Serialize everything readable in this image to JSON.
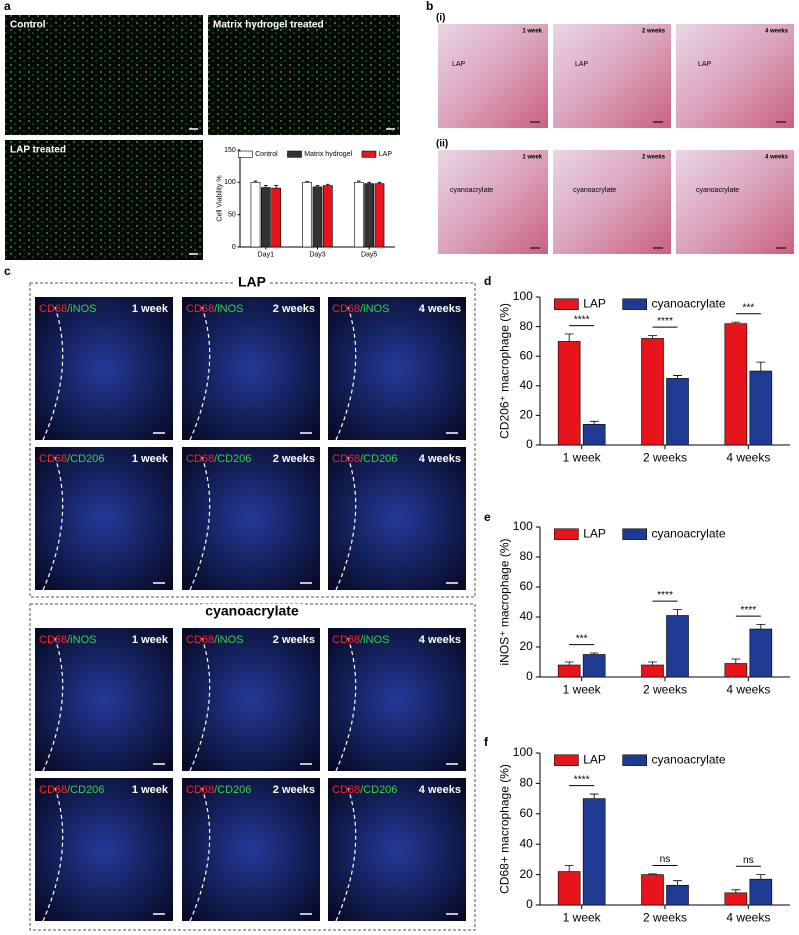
{
  "panel_labels": [
    "a",
    "b",
    "c",
    "d",
    "e",
    "f"
  ],
  "panel_a": {
    "images": [
      "Control",
      "Matrix hydrogel treated",
      "LAP treated"
    ]
  },
  "panel_b": {
    "rows": [
      {
        "label": "(i)",
        "material": "LAP"
      },
      {
        "label": "(ii)",
        "material": "cyanoacrylate"
      }
    ],
    "weeks": [
      "1 week",
      "2 weeks",
      "4 weeks"
    ]
  },
  "panel_c": {
    "groups": [
      {
        "title": "LAP"
      },
      {
        "title": "cyanoacrylate"
      }
    ],
    "stains": [
      [
        "CD68",
        "/iNOS"
      ],
      [
        "CD68",
        "/CD206"
      ]
    ],
    "weeks": [
      "1 week",
      "2 weeks",
      "4 weeks"
    ]
  },
  "chart_data": [
    {
      "type": "bar",
      "ylabel": "Cell Viability %",
      "categories": [
        "Day1",
        "Day3",
        "Day5"
      ],
      "series": [
        {
          "name": "Control",
          "color": "#ffffff",
          "values": [
            100,
            100,
            100
          ],
          "errors": [
            2,
            1,
            2
          ]
        },
        {
          "name": "Matrix hydrogel",
          "color": "#333333",
          "values": [
            92,
            93,
            98
          ],
          "errors": [
            3,
            2,
            2
          ]
        },
        {
          "name": "LAP",
          "color": "#e8141c",
          "values": [
            91,
            95,
            98
          ],
          "errors": [
            4,
            2,
            2
          ]
        }
      ],
      "ylim": [
        0,
        150
      ],
      "yticks": [
        0,
        50,
        100,
        150
      ],
      "grid": false,
      "legend": "upper right"
    },
    {
      "type": "bar",
      "ylabel": "CD206⁺ macrophage (%)",
      "categories": [
        "1 week",
        "2 weeks",
        "4 weeks"
      ],
      "series": [
        {
          "name": "LAP",
          "color": "#e8141c",
          "values": [
            70,
            72,
            82
          ],
          "errors": [
            5,
            2,
            1
          ]
        },
        {
          "name": "cyanoacrylate",
          "color": "#1f3a93",
          "values": [
            14,
            45,
            50
          ],
          "errors": [
            2,
            2,
            6
          ]
        }
      ],
      "annotations": [
        "****",
        "****",
        "***"
      ],
      "ylim": [
        0,
        100
      ],
      "yticks": [
        0,
        20,
        40,
        60,
        80,
        100
      ],
      "grid": false,
      "legend": "upper left"
    },
    {
      "type": "bar",
      "ylabel": "iNOS⁺ macrophage (%)",
      "categories": [
        "1 week",
        "2 weeks",
        "4 weeks"
      ],
      "series": [
        {
          "name": "LAP",
          "color": "#e8141c",
          "values": [
            8,
            8,
            9
          ],
          "errors": [
            2,
            2,
            3
          ]
        },
        {
          "name": "cyanoacrylate",
          "color": "#1f3a93",
          "values": [
            15,
            41,
            32
          ],
          "errors": [
            1,
            4,
            3
          ]
        }
      ],
      "annotations": [
        "***",
        "****",
        "****"
      ],
      "ylim": [
        0,
        100
      ],
      "yticks": [
        0,
        20,
        40,
        60,
        80,
        100
      ],
      "grid": false,
      "legend": "upper left"
    },
    {
      "type": "bar",
      "ylabel": "CD68+ macrophage (%)",
      "categories": [
        "1 week",
        "2 weeks",
        "4 weeks"
      ],
      "series": [
        {
          "name": "LAP",
          "color": "#e8141c",
          "values": [
            22,
            20,
            8
          ],
          "errors": [
            4,
            0.5,
            2
          ]
        },
        {
          "name": "cyanoacrylate",
          "color": "#1f3a93",
          "values": [
            70,
            13,
            17
          ],
          "errors": [
            3,
            3,
            3
          ]
        }
      ],
      "annotations": [
        "****",
        "ns",
        "ns"
      ],
      "ylim": [
        0,
        100
      ],
      "yticks": [
        0,
        20,
        40,
        60,
        80,
        100
      ],
      "grid": false,
      "legend": "upper left"
    }
  ]
}
